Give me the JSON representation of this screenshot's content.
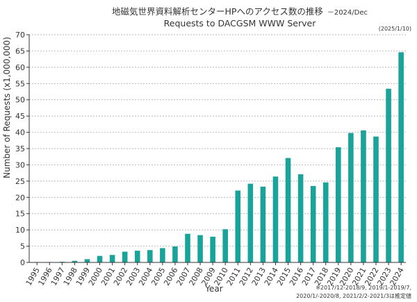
{
  "chart_data": {
    "type": "bar",
    "title_jp": "地磁気世界資料解析センターHPへのアクセス数の推移",
    "title_suffix": "－2024/Dec",
    "title_en": "Requests to DACGSM WWW Server",
    "date": "(2025/1/10)",
    "xlabel": "Year",
    "ylabel": "Number of Requests (x1,000,000)",
    "ylim": [
      0,
      70
    ],
    "yticks": [
      0,
      5,
      10,
      15,
      20,
      25,
      30,
      35,
      40,
      45,
      50,
      55,
      60,
      65,
      70
    ],
    "grid": true,
    "bar_color": "#1aa39a",
    "categories": [
      "1995",
      "1996",
      "1997",
      "1998",
      "1999",
      "2000",
      "2001",
      "2002",
      "2003",
      "2004",
      "2005",
      "2006",
      "2007",
      "2008",
      "2009",
      "2010",
      "2011",
      "2012",
      "2013",
      "2014",
      "2015",
      "2016",
      "2017",
      "2018",
      "2019",
      "2020",
      "2021",
      "2022",
      "2023",
      "2024"
    ],
    "values": [
      0.05,
      0.1,
      0.2,
      0.5,
      1.0,
      2.0,
      2.3,
      3.3,
      3.6,
      3.8,
      4.4,
      4.9,
      8.8,
      8.4,
      7.9,
      10.2,
      22.1,
      24.2,
      23.3,
      26.4,
      32.1,
      27.1,
      23.5,
      24.6,
      35.4,
      39.8,
      40.6,
      38.7,
      53.4,
      64.6
    ],
    "note_line1": "※2017/12-2018/9, 2019/1-2019/7,",
    "note_line2": "2020/1/-2020/8, 2021/2/2-2021/3は推定値"
  }
}
